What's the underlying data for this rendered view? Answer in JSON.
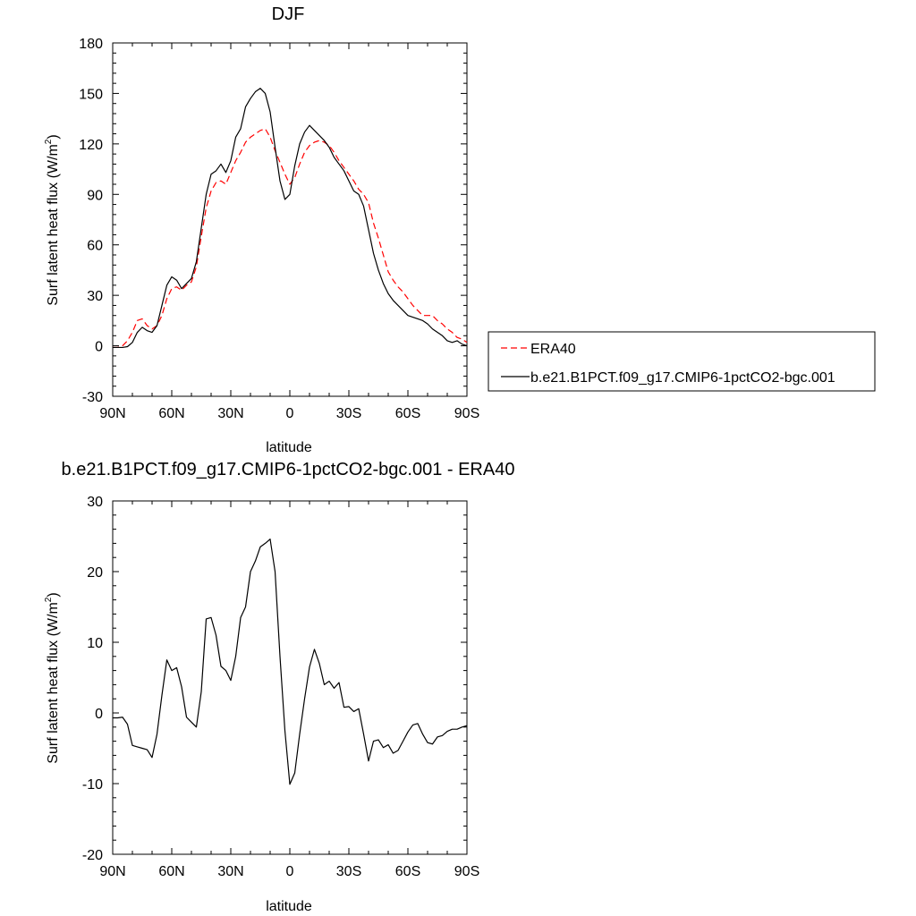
{
  "chart_data": [
    {
      "type": "line",
      "title": "DJF",
      "xlabel": "latitude",
      "ylabel": "Surf latent heat flux (W/m",
      "ylabel_sup": "2",
      "ylabel_end": ")",
      "xlim": [
        90,
        -90
      ],
      "ylim": [
        -30,
        180
      ],
      "xticks": [
        90,
        60,
        30,
        0,
        -30,
        -60,
        -90
      ],
      "xtick_labels": [
        "90N",
        "60N",
        "30N",
        "0",
        "30S",
        "60S",
        "90S"
      ],
      "yticks": [
        -30,
        0,
        30,
        60,
        90,
        120,
        150,
        180
      ],
      "ytick_labels": [
        "-30",
        "0",
        "30",
        "60",
        "90",
        "120",
        "150",
        "180"
      ],
      "legend_position": "right",
      "x": [
        90,
        87.5,
        85,
        82.5,
        80,
        77.5,
        75,
        72.5,
        70,
        67.5,
        65,
        62.5,
        60,
        57.5,
        55,
        52.5,
        50,
        47.5,
        45,
        42.5,
        40,
        37.5,
        35,
        32.5,
        30,
        27.5,
        25,
        22.5,
        20,
        17.5,
        15,
        12.5,
        10,
        7.5,
        5,
        2.5,
        0,
        -2.5,
        -5,
        -7.5,
        -10,
        -12.5,
        -15,
        -17.5,
        -20,
        -22.5,
        -25,
        -27.5,
        -30,
        -32.5,
        -35,
        -37.5,
        -40,
        -42.5,
        -45,
        -47.5,
        -50,
        -52.5,
        -55,
        -57.5,
        -60,
        -62.5,
        -65,
        -67.5,
        -70,
        -72.5,
        -75,
        -77.5,
        -80,
        -82.5,
        -85,
        -87.5,
        -90
      ],
      "series": [
        {
          "name": "ERA40",
          "color": "#ff0000",
          "dash": "dashed",
          "values": [
            -1,
            -1,
            0,
            3,
            8,
            15,
            16,
            12,
            10,
            12,
            18,
            28,
            34,
            35,
            33,
            36,
            38,
            47,
            65,
            82,
            92,
            97,
            98,
            96,
            103,
            110,
            115,
            121,
            124,
            126,
            128,
            129,
            124,
            116,
            109,
            102,
            96,
            100,
            108,
            115,
            119,
            121,
            122,
            121,
            119,
            115,
            110,
            106,
            102,
            98,
            93,
            90,
            85,
            73,
            64,
            54,
            44,
            39,
            35,
            32,
            28,
            24,
            21,
            18,
            18,
            18,
            15,
            13,
            10,
            8,
            5,
            4,
            2
          ],
          "legend_label": "ERA40"
        },
        {
          "name": "b.e21.B1PCT.f09_g17.CMIP6-1pctCO2-bgc.001",
          "color": "#000000",
          "dash": "solid",
          "values": [
            -1,
            -1,
            -1,
            -0.5,
            2,
            8,
            11,
            9,
            8,
            12,
            24,
            36,
            41,
            39,
            34,
            37,
            40,
            50,
            70,
            90,
            102,
            104,
            108,
            103,
            110,
            124,
            129,
            142,
            147,
            151,
            153,
            150,
            139,
            118,
            98,
            87,
            90,
            107,
            120,
            127,
            131,
            128,
            125,
            122,
            118,
            112,
            108,
            104,
            98,
            92,
            90,
            83,
            69,
            55,
            45,
            37,
            31,
            27,
            24,
            21,
            18,
            17,
            16,
            15,
            13,
            10,
            8,
            6,
            3,
            2,
            3,
            1,
            0
          ],
          "legend_label": "b.e21.B1PCT.f09_g17.CMIP6-1pctCO2-bgc.001"
        }
      ]
    },
    {
      "type": "line",
      "title": "b.e21.B1PCT.f09_g17.CMIP6-1pctCO2-bgc.001 - ERA40",
      "xlabel": "latitude",
      "ylabel": "Surf latent heat flux (W/m",
      "ylabel_sup": "2",
      "ylabel_end": ")",
      "xlim": [
        90,
        -90
      ],
      "ylim": [
        -20,
        30
      ],
      "xticks": [
        90,
        60,
        30,
        0,
        -30,
        -60,
        -90
      ],
      "xtick_labels": [
        "90N",
        "60N",
        "30N",
        "0",
        "30S",
        "60S",
        "90S"
      ],
      "yticks": [
        -20,
        -10,
        0,
        10,
        20,
        30
      ],
      "ytick_labels": [
        "-20",
        "-10",
        "0",
        "10",
        "20",
        "30"
      ],
      "x": [
        90,
        87.5,
        85,
        82.5,
        80,
        77.5,
        75,
        72.5,
        70,
        67.5,
        65,
        62.5,
        60,
        57.5,
        55,
        52.5,
        50,
        47.5,
        45,
        42.5,
        40,
        37.5,
        35,
        32.5,
        30,
        27.5,
        25,
        22.5,
        20,
        17.5,
        15,
        12.5,
        10,
        7.5,
        5,
        2.5,
        0,
        -2.5,
        -5,
        -7.5,
        -10,
        -12.5,
        -15,
        -17.5,
        -20,
        -22.5,
        -25,
        -27.5,
        -30,
        -32.5,
        -35,
        -37.5,
        -40,
        -42.5,
        -45,
        -47.5,
        -50,
        -52.5,
        -55,
        -57.5,
        -60,
        -62.5,
        -65,
        -67.5,
        -70,
        -72.5,
        -75,
        -77.5,
        -80,
        -82.5,
        -85,
        -87.5,
        -90
      ],
      "series": [
        {
          "color": "#000000",
          "values": [
            -0.7,
            -0.7,
            -0.6,
            -1.6,
            -4.6,
            -4.8,
            -5,
            -5.2,
            -6.3,
            -3,
            2.5,
            7.5,
            6,
            6.4,
            3.7,
            -0.6,
            -1.3,
            -2,
            3,
            13.3,
            13.5,
            11,
            6.6,
            6,
            4.6,
            8,
            13.5,
            15,
            20,
            21.5,
            23.5,
            24,
            24.6,
            20,
            8,
            -2.5,
            -10.1,
            -8.5,
            -3,
            2,
            6.5,
            9,
            7,
            4,
            4.5,
            3.5,
            4.3,
            0.8,
            0.9,
            0.2,
            0.6,
            -3,
            -6.8,
            -4,
            -3.8,
            -4.9,
            -4.5,
            -5.7,
            -5.3,
            -4,
            -2.7,
            -1.7,
            -1.5,
            -3,
            -4.2,
            -4.4,
            -3.4,
            -3.2,
            -2.6,
            -2.3,
            -2.3,
            -2,
            -1.8
          ]
        }
      ]
    }
  ]
}
